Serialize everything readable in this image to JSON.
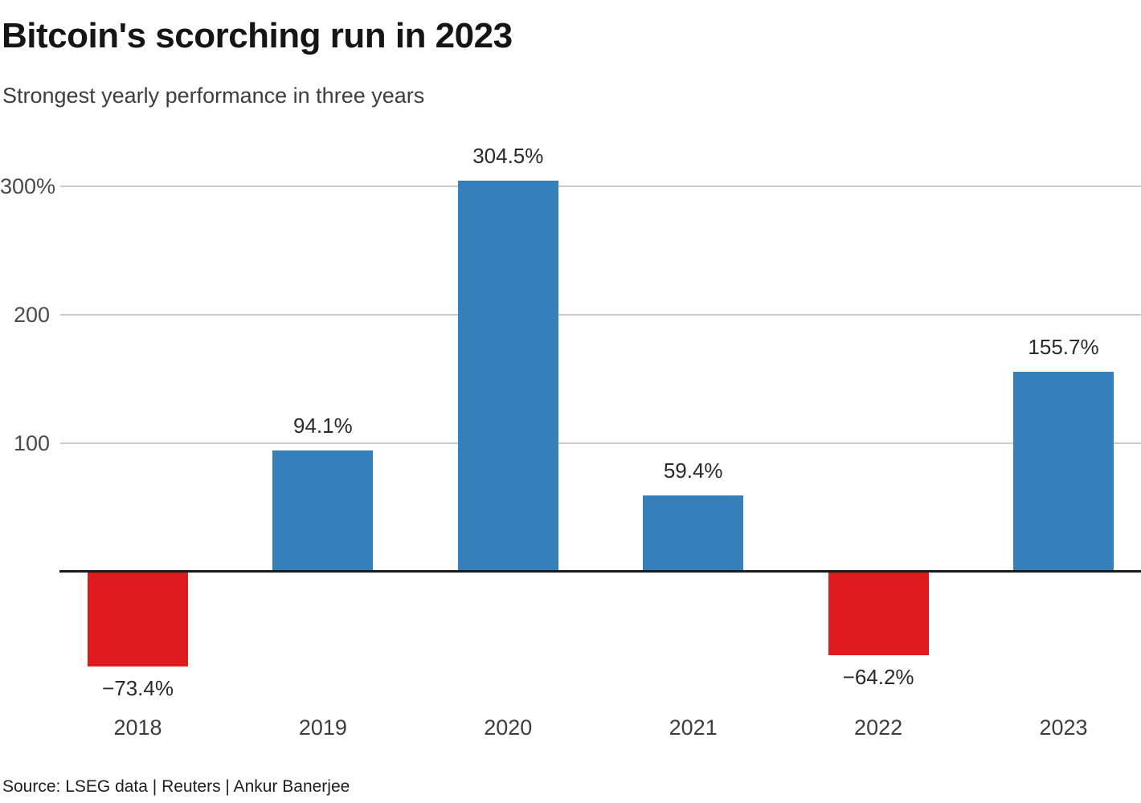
{
  "header": {
    "title": "Bitcoin's scorching run in 2023",
    "subtitle": "Strongest yearly performance in three years"
  },
  "chart_data": {
    "type": "bar",
    "title": "Bitcoin's scorching run in 2023",
    "subtitle": "Strongest yearly performance in three years",
    "categories": [
      "2018",
      "2019",
      "2020",
      "2021",
      "2022",
      "2023"
    ],
    "values": [
      -73.4,
      94.1,
      304.5,
      59.4,
      -64.2,
      155.7
    ],
    "value_labels": [
      "−73.4%",
      "94.1%",
      "304.5%",
      "59.4%",
      "−64.2%",
      "155.7%"
    ],
    "xlabel": "",
    "ylabel": "",
    "ytick_values": [
      100,
      200,
      300
    ],
    "ytick_labels": [
      "100",
      "200",
      "300%"
    ],
    "ylim": [
      -110,
      340
    ],
    "grid": "horizontal-above-zero-only",
    "legend": "none",
    "colors": {
      "positive_bar": "#357fba",
      "negative_bar": "#e01b20",
      "gridline": "#c9c9c9",
      "zero_axis": "#1a1a1a",
      "tick_text": "#4a4a4a"
    }
  },
  "source": "Source: LSEG data | Reuters | Ankur Banerjee"
}
